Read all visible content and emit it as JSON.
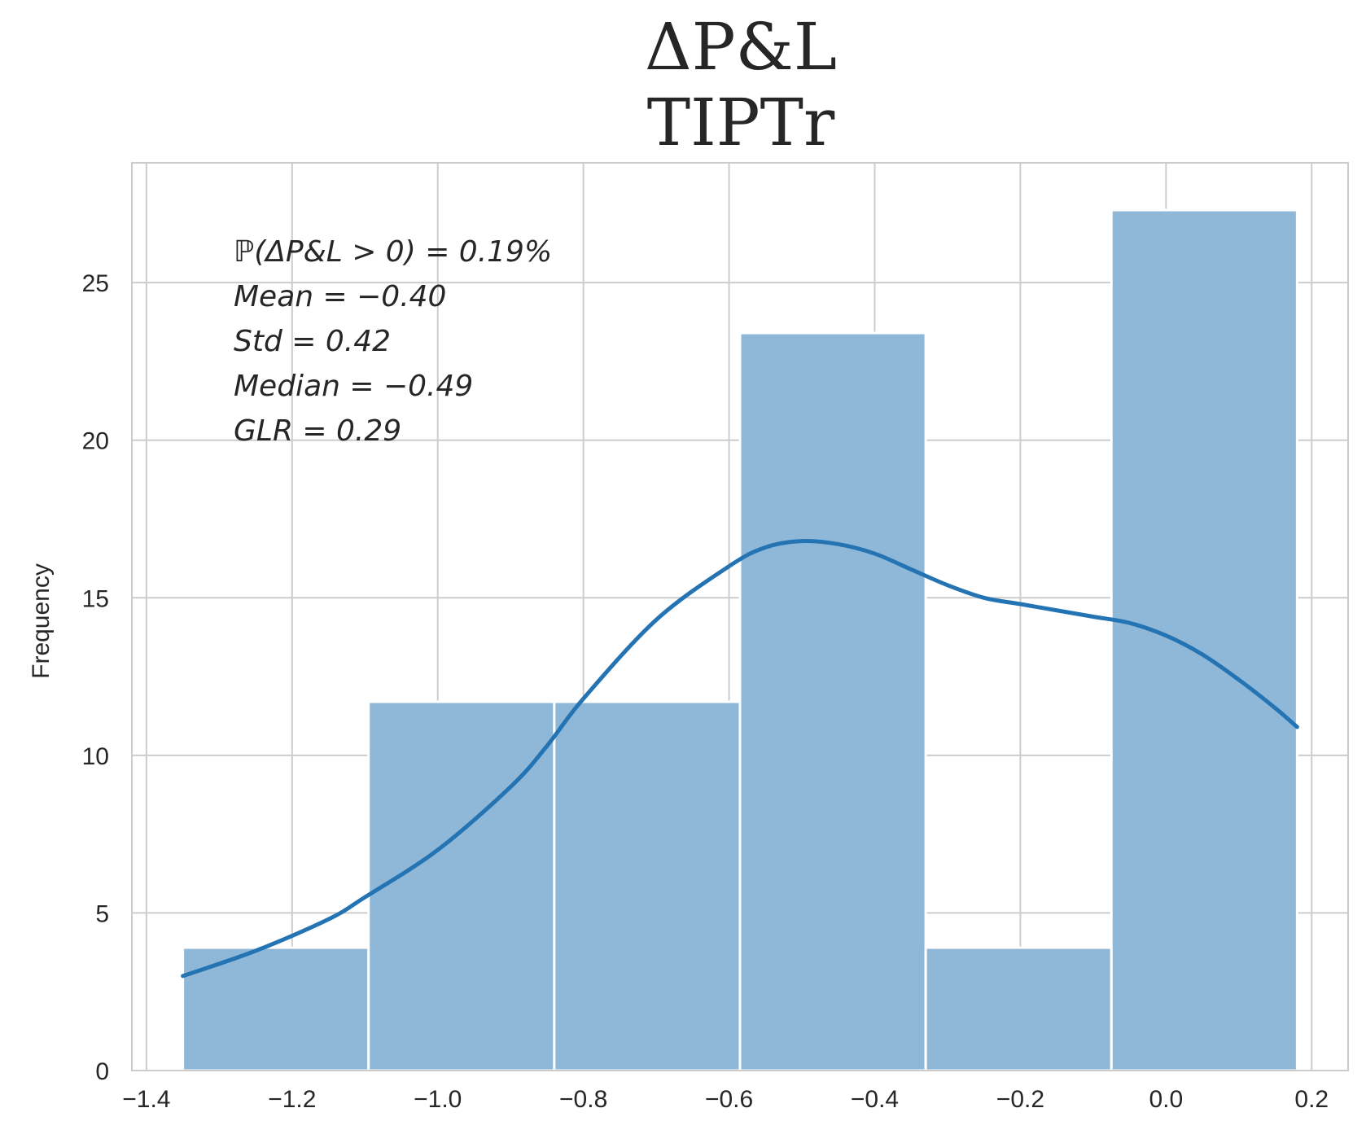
{
  "chart_data": {
    "type": "bar",
    "title_line1": "ΔP&L",
    "title_line2": "TIPTr",
    "xlabel": "",
    "ylabel": "Frequency",
    "xlim": [
      -1.42,
      0.25
    ],
    "ylim": [
      0,
      28.8
    ],
    "xticks": [
      -1.4,
      -1.2,
      -1.0,
      -0.8,
      -0.6,
      -0.4,
      -0.2,
      0.0,
      0.2
    ],
    "xtick_labels": [
      "−1.4",
      "−1.2",
      "−1.0",
      "−0.8",
      "−0.6",
      "−0.4",
      "−0.2",
      "0.0",
      "0.2"
    ],
    "yticks": [
      0,
      5,
      10,
      15,
      20,
      25
    ],
    "ytick_labels": [
      "0",
      "5",
      "10",
      "15",
      "20",
      "25"
    ],
    "grid": true,
    "bars": [
      {
        "x0": -1.35,
        "x1": -1.095,
        "value": 3.9
      },
      {
        "x0": -1.095,
        "x1": -0.84,
        "value": 11.7
      },
      {
        "x0": -0.84,
        "x1": -0.585,
        "value": 11.7
      },
      {
        "x0": -0.585,
        "x1": -0.33,
        "value": 23.4
      },
      {
        "x0": -0.33,
        "x1": -0.075,
        "value": 3.9
      },
      {
        "x0": -0.075,
        "x1": 0.18,
        "value": 27.3
      }
    ],
    "kde": {
      "x": [
        -1.35,
        -1.25,
        -1.15,
        -1.1,
        -1.0,
        -0.9,
        -0.85,
        -0.8,
        -0.7,
        -0.6,
        -0.55,
        -0.5,
        -0.45,
        -0.4,
        -0.35,
        -0.3,
        -0.25,
        -0.2,
        -0.15,
        -0.1,
        -0.05,
        0.0,
        0.05,
        0.1,
        0.15,
        0.18
      ],
      "y": [
        3.0,
        3.8,
        4.8,
        5.5,
        7.0,
        9.0,
        10.3,
        11.8,
        14.3,
        16.0,
        16.6,
        16.8,
        16.7,
        16.4,
        15.9,
        15.4,
        15.0,
        14.8,
        14.6,
        14.4,
        14.2,
        13.8,
        13.2,
        12.4,
        11.5,
        10.9
      ]
    },
    "annotations": [
      "ℙ(ΔP&L > 0) = 0.19%",
      "Mean = −0.40",
      "Std = 0.42",
      "Median = −0.49",
      " GLR = 0.29"
    ],
    "colors": {
      "bar_fill": "#8fb8d8",
      "bar_edge": "#ffffff",
      "kde_line": "#2474b4",
      "grid": "#cccccc",
      "text": "#262626"
    }
  }
}
